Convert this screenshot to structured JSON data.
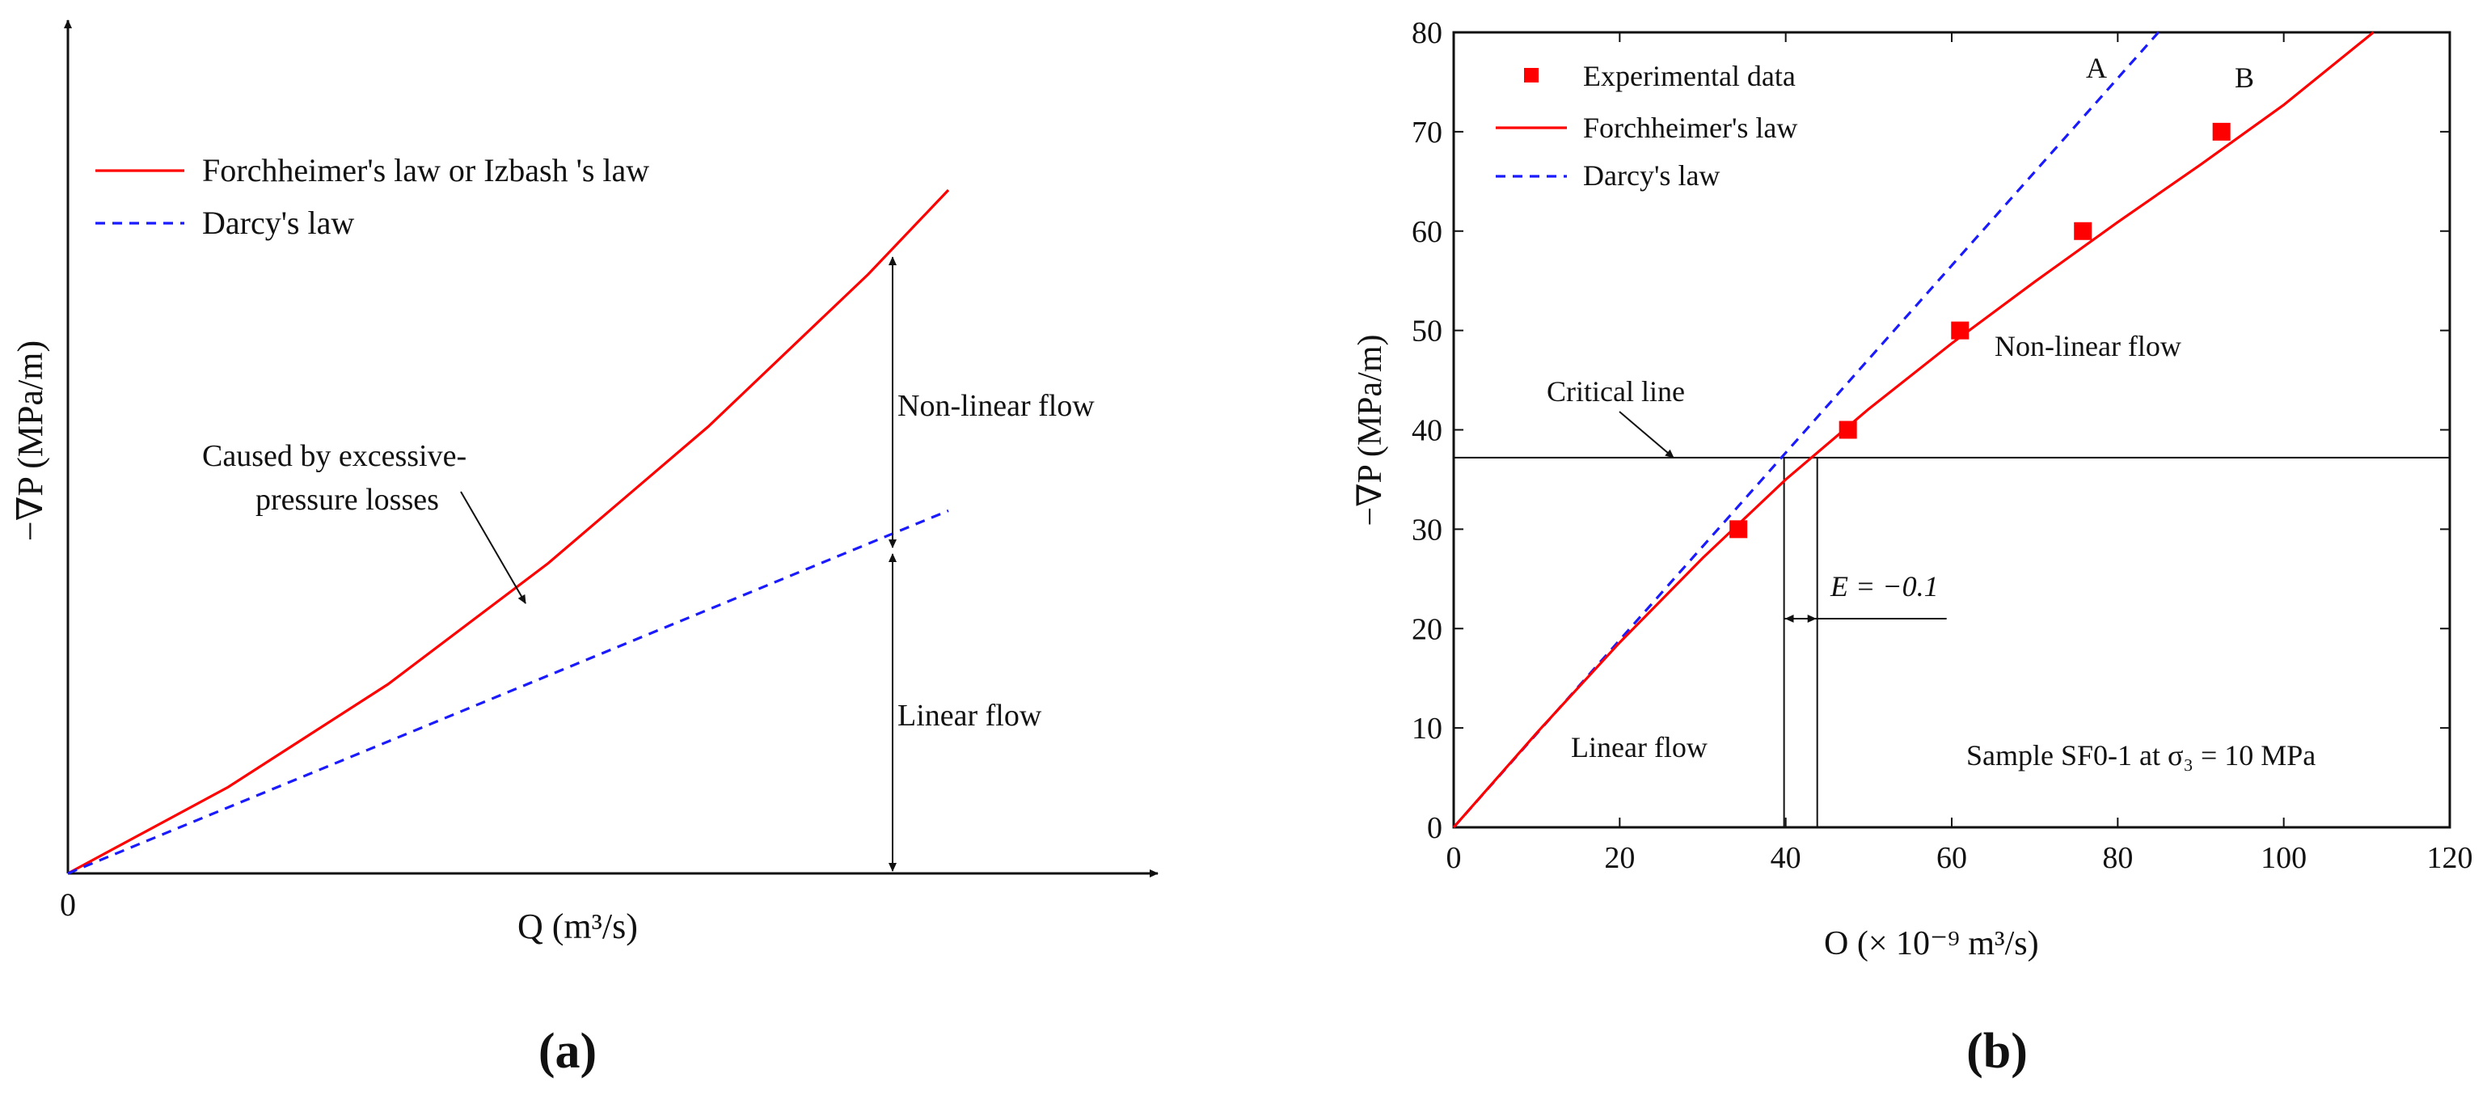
{
  "colors": {
    "forchheimer": "#ff0000",
    "darcy": "#1a1aff",
    "ink": "#111111"
  },
  "panel_a": {
    "label": "(a)",
    "legend": [
      "Forchheimer's law or Izbash 's law",
      "Darcy's law"
    ],
    "ylabel": "−∇P (MPa/m)",
    "xlabel": "Q (m³/s)",
    "origin": "0",
    "annotation_nonlinear": "Non-linear flow",
    "annotation_linear": "Linear flow",
    "annotation_caused_1": "Caused by excessive-",
    "annotation_caused_2": "pressure losses"
  },
  "panel_b": {
    "label": "(b)",
    "legend": [
      "Experimental data",
      "Forchheimer's law",
      "Darcy's law"
    ],
    "curve_label_a": "A",
    "curve_label_b": "B",
    "critical_line": "Critical line",
    "nonlinear_flow": "Non-linear flow",
    "linear_flow": "Linear flow",
    "e_label": "E = −0.1",
    "sample_label": "Sample SF0-1 at σ₃ = 10 MPa",
    "ylabel": "−∇P (MPa/m)",
    "xlabel": "O (× 10⁻⁹ m³/s)"
  },
  "chart_data": [
    {
      "type": "line",
      "title": "(a)",
      "xlabel": "Q (m³/s)",
      "ylabel": "−∇P (MPa/m)",
      "schematic": true,
      "series": [
        {
          "name": "Forchheimer's law or Izbash 's law",
          "x": [
            0,
            1,
            2,
            3,
            4,
            5,
            5.5
          ],
          "y": [
            0,
            0.82,
            1.8,
            2.95,
            4.25,
            5.7,
            6.5
          ]
        },
        {
          "name": "Darcy's law",
          "x": [
            0,
            5.5
          ],
          "y": [
            0,
            3.45
          ]
        }
      ]
    },
    {
      "type": "scatter",
      "title": "(b)",
      "xlabel": "O (× 10⁻⁹ m³/s)",
      "ylabel": "−∇P (MPa/m)",
      "xlim": [
        0,
        120
      ],
      "ylim": [
        0,
        80
      ],
      "xticks": [
        0,
        20,
        40,
        60,
        80,
        100,
        120
      ],
      "yticks": [
        0,
        10,
        20,
        30,
        40,
        50,
        60,
        70,
        80
      ],
      "critical_line_y": 37.2,
      "e_marker_x": [
        39.8,
        43.8
      ],
      "series": [
        {
          "name": "Experimental data",
          "x": [
            34.3,
            47.5,
            61.0,
            75.8,
            92.5
          ],
          "y": [
            30,
            40,
            50,
            60,
            70
          ]
        },
        {
          "name": "Forchheimer's law",
          "x": [
            0,
            10,
            20,
            30,
            40,
            50,
            60,
            70,
            80,
            90,
            100,
            110.8
          ],
          "y": [
            0,
            9.5,
            18.6,
            27.1,
            35.0,
            42.1,
            48.7,
            54.9,
            60.9,
            66.7,
            72.7,
            80
          ]
        },
        {
          "name": "Darcy's law",
          "x": [
            0,
            84.9
          ],
          "y": [
            0,
            80
          ]
        }
      ]
    }
  ]
}
